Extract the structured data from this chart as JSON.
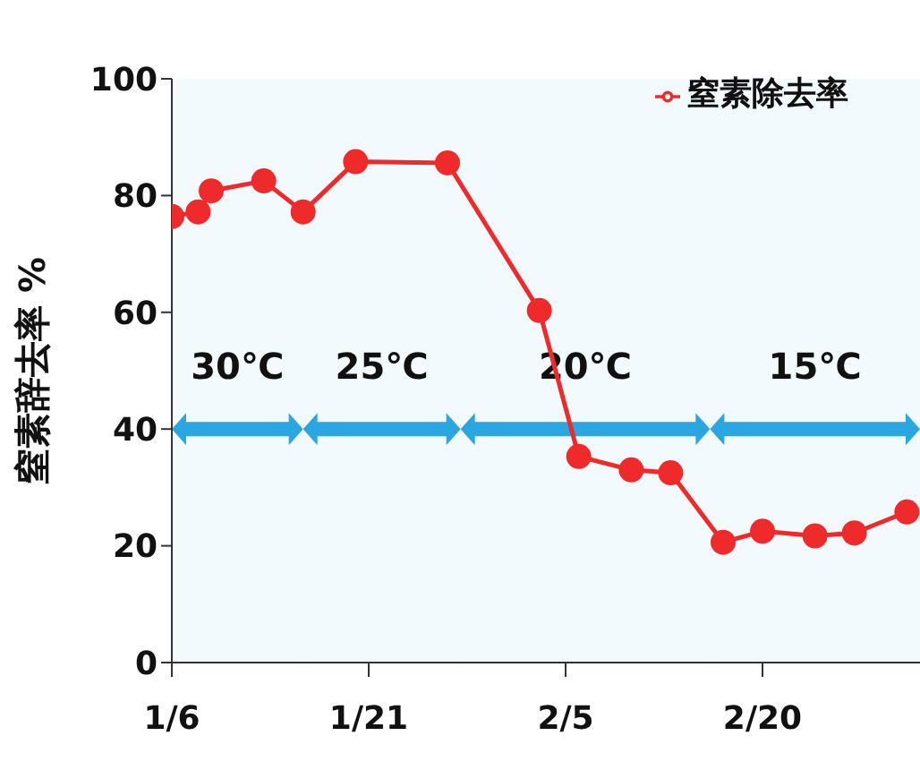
{
  "chart_data": {
    "type": "line",
    "ylabel": "窒素辞去率 %",
    "x": [
      "--01-06",
      "--01-08",
      "--01-09",
      "--01-13",
      "--01-16",
      "--01-20",
      "--01-27",
      "--02-03",
      "--02-06",
      "--02-10",
      "--02-13",
      "--02-17",
      "--02-20",
      "--02-24",
      "--02-27",
      "--03-03"
    ],
    "series": [
      {
        "name": "窒素除去率",
        "color": "#ee2a2a",
        "values": [
          76.4,
          77.2,
          80.8,
          82.5,
          77.2,
          85.8,
          85.6,
          60.3,
          35.3,
          33,
          32.5,
          20.6,
          22.5,
          21.7,
          22.2,
          25.8
        ]
      }
    ],
    "xlim": [
      "--01-06",
      "--03-04"
    ],
    "xticks": [
      {
        "value": "--01-06",
        "label": "1/6"
      },
      {
        "value": "--01-21",
        "label": "1/21"
      },
      {
        "value": "--02-05",
        "label": "2/5"
      },
      {
        "value": "--02-20",
        "label": "2/20"
      }
    ],
    "ylim": [
      0,
      100
    ],
    "yticks": [
      0,
      20,
      40,
      60,
      80,
      100
    ],
    "bands": [
      {
        "axis": "x",
        "from": "--01-06",
        "to": "--01-16",
        "label": "30℃",
        "color": "#2aa6e0"
      },
      {
        "axis": "x",
        "from": "--01-16",
        "to": "--01-28",
        "label": "25℃",
        "color": "#2aa6e0"
      },
      {
        "axis": "x",
        "from": "--01-28",
        "to": "--02-16",
        "label": "20℃",
        "color": "#2aa6e0"
      },
      {
        "axis": "x",
        "from": "--02-16",
        "to": "--03-04",
        "label": "15℃",
        "color": "#2aa6e0"
      }
    ],
    "grid": false,
    "legend": "top right",
    "marker": "circle",
    "line_style": "solid"
  }
}
